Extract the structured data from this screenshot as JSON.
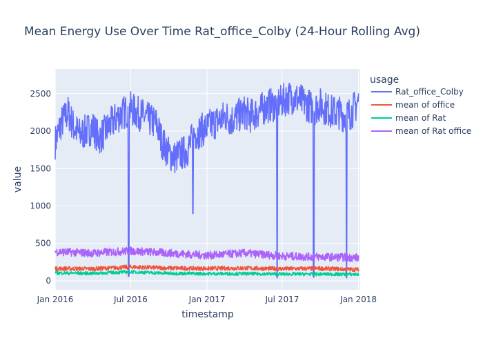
{
  "chart_data": {
    "type": "line",
    "title": "Mean Energy Use Over Time Rat_office_Colby (24-Hour Rolling Avg)",
    "xlabel": "timestamp",
    "ylabel": "value",
    "xlim": [
      "2016-01-01",
      "2018-01-05"
    ],
    "ylim": [
      -120,
      2830
    ],
    "x_ticks": [
      {
        "date": "2016-01-01",
        "label": "Jan 2016"
      },
      {
        "date": "2016-07-01",
        "label": "Jul 2016"
      },
      {
        "date": "2017-01-01",
        "label": "Jan 2017"
      },
      {
        "date": "2017-07-01",
        "label": "Jul 2017"
      },
      {
        "date": "2018-01-01",
        "label": "Jan 2018"
      }
    ],
    "y_ticks": [
      0,
      500,
      1000,
      1500,
      2000,
      2500
    ],
    "grid": true,
    "legend": {
      "title": "usage",
      "position": "right"
    },
    "series": [
      {
        "name": "Rat_office_Colby",
        "color": "#636efa",
        "points": [
          [
            "2016-01-01",
            1850
          ],
          [
            "2016-01-15",
            2100
          ],
          [
            "2016-02-01",
            2250
          ],
          [
            "2016-02-15",
            2050
          ],
          [
            "2016-03-01",
            1950
          ],
          [
            "2016-03-15",
            2000
          ],
          [
            "2016-04-01",
            2050
          ],
          [
            "2016-04-15",
            1900
          ],
          [
            "2016-05-01",
            2000
          ],
          [
            "2016-05-15",
            2100
          ],
          [
            "2016-06-01",
            2200
          ],
          [
            "2016-06-15",
            2250
          ],
          [
            "2016-07-01",
            2300
          ],
          [
            "2016-07-15",
            2250
          ],
          [
            "2016-08-01",
            2200
          ],
          [
            "2016-08-15",
            2150
          ],
          [
            "2016-09-01",
            2100
          ],
          [
            "2016-09-15",
            1850
          ],
          [
            "2016-10-01",
            1700
          ],
          [
            "2016-10-15",
            1650
          ],
          [
            "2016-11-01",
            1700
          ],
          [
            "2016-11-15",
            1750
          ],
          [
            "2016-12-01",
            1950
          ],
          [
            "2016-12-15",
            2000
          ],
          [
            "2017-01-01",
            2050
          ],
          [
            "2017-01-15",
            2100
          ],
          [
            "2017-02-01",
            2150
          ],
          [
            "2017-02-15",
            2200
          ],
          [
            "2017-03-01",
            2150
          ],
          [
            "2017-03-15",
            2200
          ],
          [
            "2017-04-01",
            2250
          ],
          [
            "2017-04-15",
            2200
          ],
          [
            "2017-05-01",
            2250
          ],
          [
            "2017-05-15",
            2300
          ],
          [
            "2017-06-01",
            2350
          ],
          [
            "2017-06-15",
            2350
          ],
          [
            "2017-07-01",
            2400
          ],
          [
            "2017-07-15",
            2450
          ],
          [
            "2017-08-01",
            2450
          ],
          [
            "2017-08-15",
            2400
          ],
          [
            "2017-09-01",
            2350
          ],
          [
            "2017-09-15",
            2300
          ],
          [
            "2017-10-01",
            2350
          ],
          [
            "2017-10-15",
            2300
          ],
          [
            "2017-11-01",
            2250
          ],
          [
            "2017-11-15",
            2250
          ],
          [
            "2017-12-01",
            2200
          ],
          [
            "2017-12-15",
            2250
          ],
          [
            "2018-01-01",
            2400
          ]
        ],
        "dips": [
          [
            "2016-06-26",
            60
          ],
          [
            "2016-11-28",
            900
          ],
          [
            "2017-06-19",
            40
          ],
          [
            "2017-09-15",
            50
          ],
          [
            "2017-12-03",
            40
          ]
        ]
      },
      {
        "name": "mean of office",
        "color": "#ef553b",
        "points": [
          [
            "2016-01-01",
            165
          ],
          [
            "2016-04-01",
            160
          ],
          [
            "2016-07-01",
            185
          ],
          [
            "2016-10-01",
            170
          ],
          [
            "2017-01-01",
            165
          ],
          [
            "2017-04-01",
            170
          ],
          [
            "2017-07-01",
            160
          ],
          [
            "2017-10-01",
            165
          ],
          [
            "2018-01-01",
            150
          ]
        ]
      },
      {
        "name": "mean of Rat",
        "color": "#00cc96",
        "points": [
          [
            "2016-01-01",
            105
          ],
          [
            "2016-04-01",
            100
          ],
          [
            "2016-07-01",
            120
          ],
          [
            "2016-10-01",
            100
          ],
          [
            "2017-01-01",
            95
          ],
          [
            "2017-04-01",
            95
          ],
          [
            "2017-07-01",
            90
          ],
          [
            "2017-10-01",
            90
          ],
          [
            "2018-01-01",
            85
          ]
        ]
      },
      {
        "name": "mean of Rat office",
        "color": "#ab63fa",
        "points": [
          [
            "2016-01-01",
            390
          ],
          [
            "2016-04-01",
            370
          ],
          [
            "2016-07-01",
            400
          ],
          [
            "2016-10-01",
            370
          ],
          [
            "2017-01-01",
            340
          ],
          [
            "2017-04-01",
            370
          ],
          [
            "2017-07-01",
            330
          ],
          [
            "2017-10-01",
            320
          ],
          [
            "2018-01-01",
            310
          ]
        ]
      }
    ]
  }
}
